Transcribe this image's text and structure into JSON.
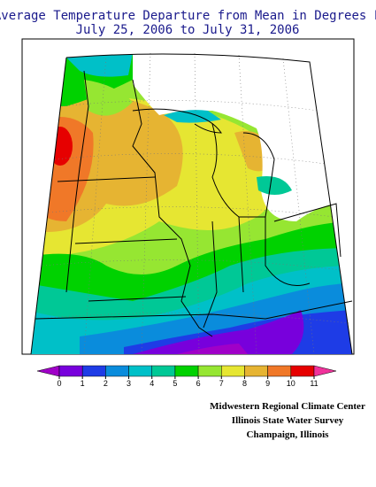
{
  "title": [
    "Average Temperature Departure from Mean in Degrees F",
    "July 25, 2006 to July 31, 2006"
  ],
  "colorbar": {
    "ticks": [
      0,
      1,
      2,
      3,
      4,
      5,
      6,
      7,
      8,
      9,
      10,
      11
    ],
    "colors": [
      "#a000c8",
      "#7800dc",
      "#1e3ce6",
      "#0a8cdc",
      "#00c0c8",
      "#00c896",
      "#00d200",
      "#96e632",
      "#e6e632",
      "#e6b432",
      "#f07828",
      "#e60000",
      "#f0329b"
    ]
  },
  "credits": [
    "Midwestern Regional Climate Center",
    "Illinois State Water Survey",
    "Champaign, Illinois"
  ]
}
